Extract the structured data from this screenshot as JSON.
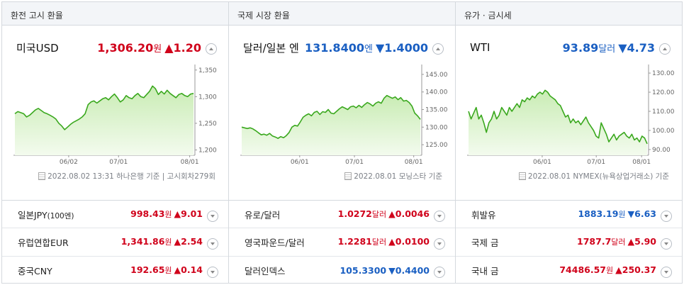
{
  "panels": [
    {
      "tab": "환전 고시 환율",
      "name": "미국USD",
      "price": "1,306.20",
      "unit": "원",
      "direction": "up",
      "arrow": "▲",
      "change": "1.20",
      "note": "2022.08.02 13:31 하나은행 기준 | 고시회차279회",
      "rows": [
        {
          "name": "일본JPY",
          "name_small": "(100엔)",
          "value": "998.43",
          "unit": "원",
          "direction": "up",
          "arrow": "▲",
          "change": "9.01"
        },
        {
          "name": "유럽연합EUR",
          "name_small": "",
          "value": "1,341.86",
          "unit": "원",
          "direction": "up",
          "arrow": "▲",
          "change": "2.54"
        },
        {
          "name": "중국CNY",
          "name_small": "",
          "value": "192.65",
          "unit": "원",
          "direction": "up",
          "arrow": "▲",
          "change": "0.14"
        }
      ]
    },
    {
      "tab": "국제 시장 환율",
      "name": "달러/일본 엔",
      "price": "131.8400",
      "unit": "엔",
      "direction": "down",
      "arrow": "▼",
      "change": "1.4000",
      "note": "2022.08.01 모닝스타 기준",
      "rows": [
        {
          "name": "유로/달러",
          "name_small": "",
          "value": "1.0272",
          "unit": "달러",
          "direction": "up",
          "arrow": "▲",
          "change": "0.0046"
        },
        {
          "name": "영국파운드/달러",
          "name_small": "",
          "value": "1.2281",
          "unit": "달러",
          "direction": "up",
          "arrow": "▲",
          "change": "0.0100"
        },
        {
          "name": "달러인덱스",
          "name_small": "",
          "value": "105.3300",
          "unit": "",
          "direction": "down",
          "arrow": "▼",
          "change": "0.4400"
        }
      ]
    },
    {
      "tab": "유가 · 금시세",
      "name": "WTI",
      "price": "93.89",
      "unit": "달러",
      "direction": "down",
      "arrow": "▼",
      "change": "4.73",
      "note": "2022.08.01 NYMEX(뉴욕상업거래소) 기준",
      "rows": [
        {
          "name": "휘발유",
          "name_small": "",
          "value": "1883.19",
          "unit": "원",
          "direction": "down",
          "arrow": "▼",
          "change": "6.63"
        },
        {
          "name": "국제 금",
          "name_small": "",
          "value": "1787.7",
          "unit": "달러",
          "direction": "up",
          "arrow": "▲",
          "change": "5.90"
        },
        {
          "name": "국내 금",
          "name_small": "",
          "value": "74486.57",
          "unit": "원",
          "direction": "up",
          "arrow": "▲",
          "change": "250.37"
        }
      ]
    }
  ],
  "colors": {
    "up": "#d0021b",
    "down": "#1a5fc2",
    "line": "#3aa81e",
    "fill_top": "#c9ecb4",
    "fill_bottom": "#f3fbee"
  },
  "chart_data": [
    {
      "type": "area",
      "xticks": [
        "06/02",
        "07/01",
        "08/01"
      ],
      "xtick_pos": [
        0.276,
        0.562,
        0.97
      ],
      "ylim": [
        1190,
        1355
      ],
      "yticks": [
        1350,
        1300,
        1250,
        1200
      ],
      "ytick_labels": [
        "1,350",
        "1,300",
        "1,250",
        "1,200"
      ],
      "values": [
        1268,
        1272,
        1270,
        1268,
        1262,
        1265,
        1270,
        1275,
        1278,
        1274,
        1270,
        1268,
        1265,
        1262,
        1258,
        1250,
        1245,
        1238,
        1243,
        1248,
        1252,
        1255,
        1258,
        1262,
        1268,
        1285,
        1290,
        1292,
        1288,
        1292,
        1296,
        1298,
        1294,
        1300,
        1305,
        1298,
        1290,
        1294,
        1302,
        1298,
        1296,
        1302,
        1306,
        1300,
        1298,
        1304,
        1310,
        1320,
        1315,
        1304,
        1310,
        1305,
        1312,
        1306,
        1302,
        1298,
        1304,
        1306,
        1302,
        1300,
        1305,
        1306
      ]
    },
    {
      "type": "area",
      "xticks": [
        "06/01",
        "07/01",
        "08/01"
      ],
      "xtick_pos": [
        0.3,
        0.614,
        0.954
      ],
      "ylim": [
        122,
        147
      ],
      "yticks": [
        145,
        140,
        135,
        130,
        125
      ],
      "ytick_labels": [
        "145.00",
        "140.00",
        "135.00",
        "130.00",
        "125.00"
      ],
      "values": [
        130.0,
        129.8,
        129.6,
        129.8,
        129.5,
        129.0,
        128.4,
        127.8,
        128.0,
        127.7,
        128.2,
        127.5,
        127.2,
        126.8,
        127.3,
        127.0,
        127.6,
        128.5,
        130.0,
        130.5,
        130.3,
        131.5,
        132.8,
        133.4,
        133.8,
        133.2,
        134.2,
        134.5,
        133.6,
        134.4,
        134.2,
        135.0,
        134.0,
        133.8,
        134.5,
        135.2,
        135.8,
        135.4,
        135.0,
        135.8,
        136.0,
        135.5,
        136.2,
        135.6,
        136.4,
        137.0,
        136.6,
        136.0,
        136.8,
        137.2,
        136.8,
        138.2,
        139.0,
        138.6,
        138.2,
        138.6,
        137.8,
        138.4,
        137.4,
        137.6,
        137.0,
        136.0,
        134.0,
        133.2,
        132.2
      ]
    },
    {
      "type": "area",
      "xticks": [
        "06/01",
        "07/01",
        "08/01"
      ],
      "xtick_pos": [
        0.39,
        0.7,
        0.96
      ],
      "ylim": [
        87,
        133
      ],
      "yticks": [
        130,
        120,
        110,
        100,
        90
      ],
      "ytick_labels": [
        "130.00",
        "120.00",
        "110.00",
        "100.00",
        "90.00"
      ],
      "values": [
        110,
        106,
        109,
        112,
        106,
        108,
        104,
        99,
        104,
        106,
        110,
        106,
        108,
        112,
        110,
        108,
        112,
        110,
        112,
        114,
        112,
        116,
        115,
        117,
        116,
        118,
        117,
        119,
        120,
        119,
        121,
        120,
        118,
        117,
        116,
        114,
        113,
        110,
        107,
        108,
        104,
        106,
        104,
        105,
        103,
        105,
        107,
        104,
        102,
        100,
        97,
        96,
        104,
        101,
        98,
        94,
        96,
        98,
        95,
        97,
        98,
        99,
        97,
        96,
        98,
        95,
        96,
        94,
        97,
        96,
        93
      ]
    }
  ]
}
